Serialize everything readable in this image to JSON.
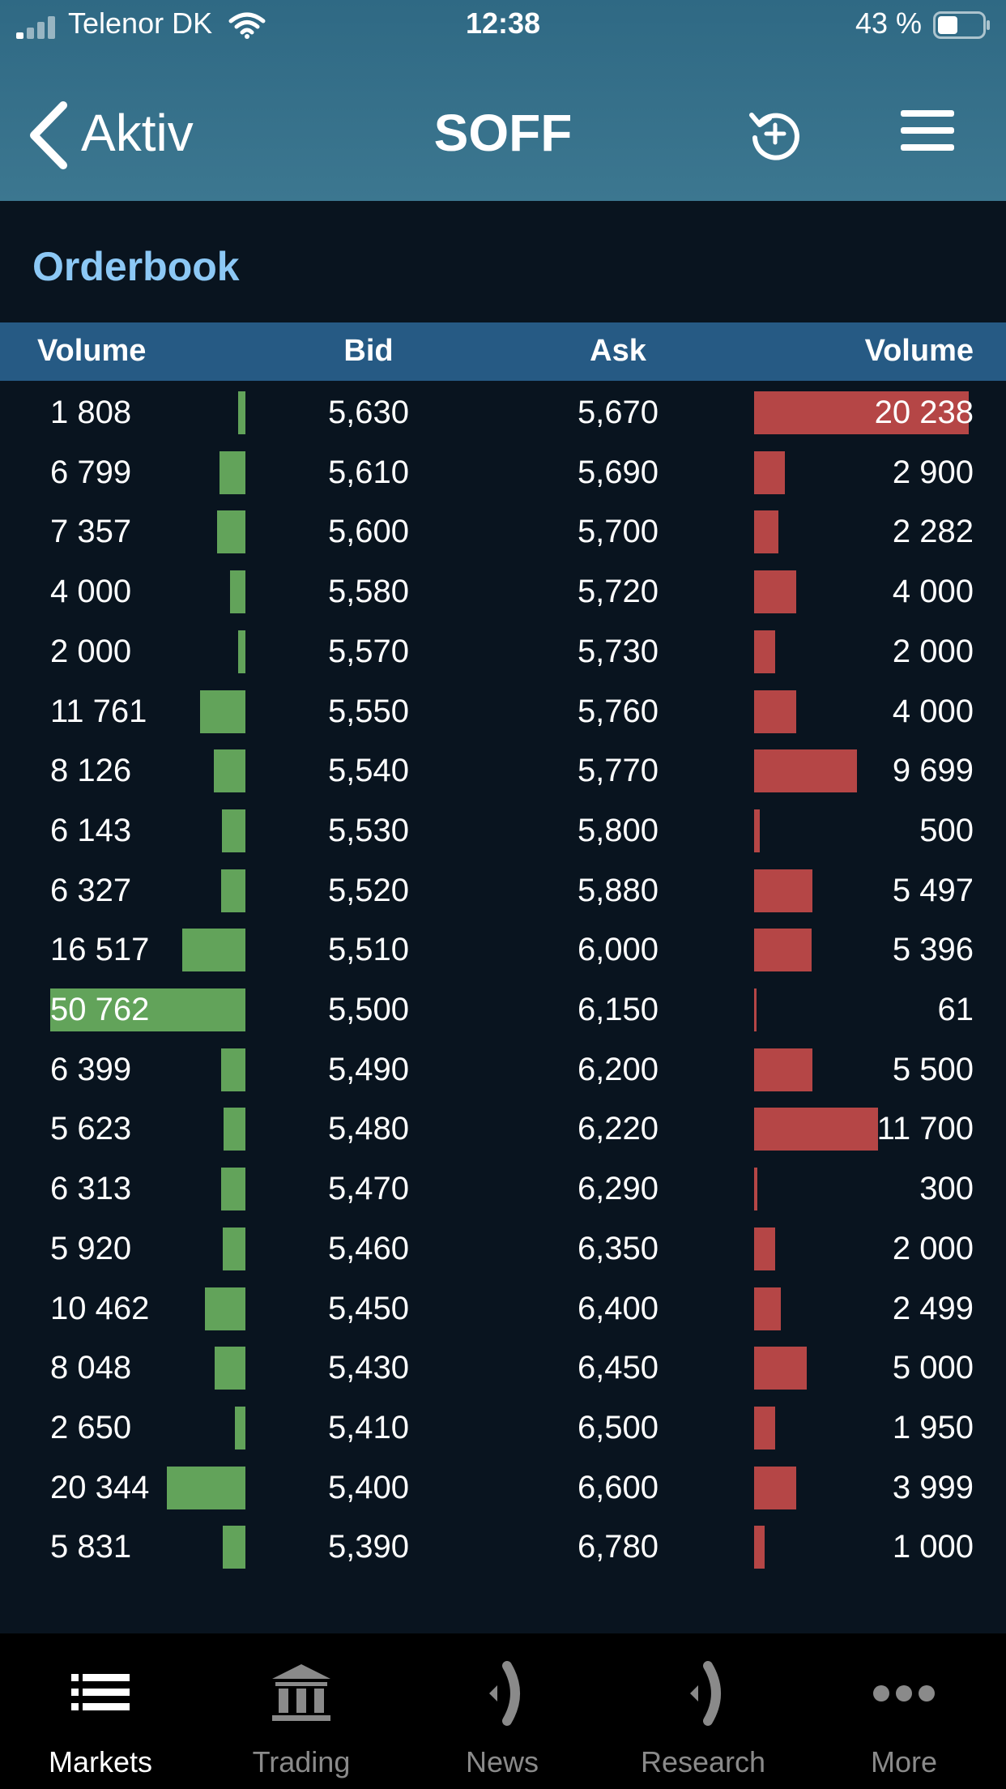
{
  "status_bar": {
    "carrier": "Telenor DK",
    "time": "12:38",
    "battery": "43 %"
  },
  "header": {
    "back_label": "Aktiv",
    "title": "SOFF"
  },
  "orderbook": {
    "title": "Orderbook",
    "columns": {
      "bid_volume": "Volume",
      "bid": "Bid",
      "ask": "Ask",
      "ask_volume": "Volume"
    },
    "rows": [
      {
        "bid_volume": "1 808",
        "bid": "5,630",
        "ask": "5,670",
        "ask_volume": "20 238"
      },
      {
        "bid_volume": "6 799",
        "bid": "5,610",
        "ask": "5,690",
        "ask_volume": "2 900"
      },
      {
        "bid_volume": "7 357",
        "bid": "5,600",
        "ask": "5,700",
        "ask_volume": "2 282"
      },
      {
        "bid_volume": "4 000",
        "bid": "5,580",
        "ask": "5,720",
        "ask_volume": "4 000"
      },
      {
        "bid_volume": "2 000",
        "bid": "5,570",
        "ask": "5,730",
        "ask_volume": "2 000"
      },
      {
        "bid_volume": "11 761",
        "bid": "5,550",
        "ask": "5,760",
        "ask_volume": "4 000"
      },
      {
        "bid_volume": "8 126",
        "bid": "5,540",
        "ask": "5,770",
        "ask_volume": "9 699"
      },
      {
        "bid_volume": "6 143",
        "bid": "5,530",
        "ask": "5,800",
        "ask_volume": "500"
      },
      {
        "bid_volume": "6 327",
        "bid": "5,520",
        "ask": "5,880",
        "ask_volume": "5 497"
      },
      {
        "bid_volume": "16 517",
        "bid": "5,510",
        "ask": "6,000",
        "ask_volume": "5 396"
      },
      {
        "bid_volume": "50 762",
        "bid": "5,500",
        "ask": "6,150",
        "ask_volume": "61"
      },
      {
        "bid_volume": "6 399",
        "bid": "5,490",
        "ask": "6,200",
        "ask_volume": "5 500"
      },
      {
        "bid_volume": "5 623",
        "bid": "5,480",
        "ask": "6,220",
        "ask_volume": "11 700"
      },
      {
        "bid_volume": "6 313",
        "bid": "5,470",
        "ask": "6,290",
        "ask_volume": "300"
      },
      {
        "bid_volume": "5 920",
        "bid": "5,460",
        "ask": "6,350",
        "ask_volume": "2 000"
      },
      {
        "bid_volume": "10 462",
        "bid": "5,450",
        "ask": "6,400",
        "ask_volume": "2 499"
      },
      {
        "bid_volume": "8 048",
        "bid": "5,430",
        "ask": "6,450",
        "ask_volume": "5 000"
      },
      {
        "bid_volume": "2 650",
        "bid": "5,410",
        "ask": "6,500",
        "ask_volume": "1 950"
      },
      {
        "bid_volume": "20 344",
        "bid": "5,400",
        "ask": "6,600",
        "ask_volume": "3 999"
      },
      {
        "bid_volume": "5 831",
        "bid": "5,390",
        "ask": "6,780",
        "ask_volume": "1 000"
      }
    ]
  },
  "colors": {
    "header_bg": "#3c7790",
    "body_bg": "#09141f",
    "column_header_bg": "#265a84",
    "section_title": "#8cc8f5",
    "bid_bar": "#62a35a",
    "ask_bar": "#b54646"
  },
  "tab_bar": {
    "items": [
      {
        "label": "Markets",
        "icon": "list-icon",
        "active": true
      },
      {
        "label": "Trading",
        "icon": "bank-icon",
        "active": false
      },
      {
        "label": "News",
        "icon": "broadcast-icon",
        "active": false
      },
      {
        "label": "Research",
        "icon": "broadcast-icon",
        "active": false
      },
      {
        "label": "More",
        "icon": "more-dots-icon",
        "active": false
      }
    ]
  }
}
